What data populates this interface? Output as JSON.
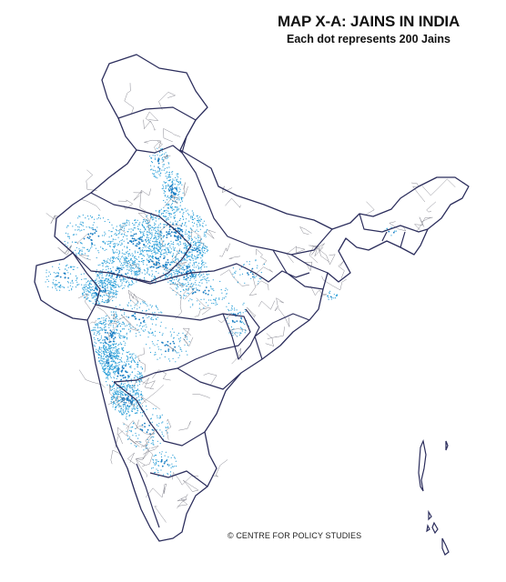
{
  "map": {
    "title": "MAP X-A: JAINS IN INDIA",
    "subtitle": "Each dot represents 200 Jains",
    "credit": "© CENTRE FOR POLICY STUDIES",
    "colors": {
      "dot": "#2a9fd8",
      "dense": "#1b7fc4",
      "border_state": "#2b2d5c",
      "border_district": "#7a7a86",
      "background": "#ffffff"
    }
  }
}
